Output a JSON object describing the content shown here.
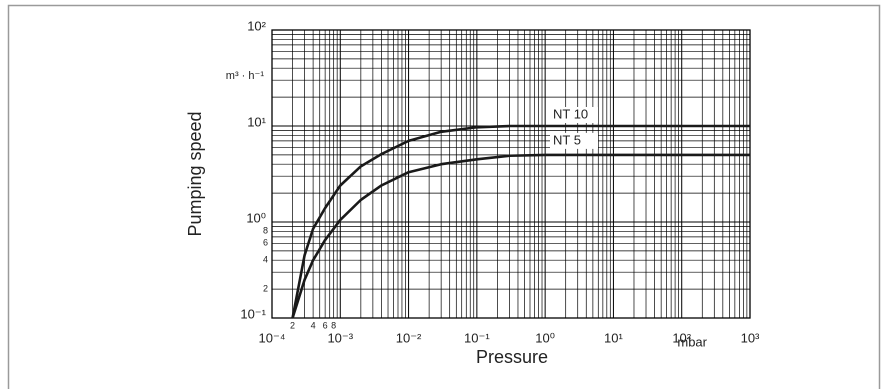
{
  "chart_data": {
    "type": "line",
    "x_label": "Pressure",
    "y_label": "Pumping speed",
    "x_unit": "mbar",
    "y_unit": "m³ · h⁻¹",
    "xscale": "log",
    "yscale": "log",
    "grid": true,
    "xlim": [
      0.0001,
      1000
    ],
    "ylim": [
      0.1,
      100
    ],
    "xticks": [
      {
        "value": 0.0001,
        "label": "10⁻⁴"
      },
      {
        "value": 0.001,
        "label": "10⁻³"
      },
      {
        "value": 0.01,
        "label": "10⁻²"
      },
      {
        "value": 0.1,
        "label": "10⁻¹"
      },
      {
        "value": 1,
        "label": "10⁰"
      },
      {
        "value": 10,
        "label": "10¹"
      },
      {
        "value": 100,
        "label": "10²"
      },
      {
        "value": 1000,
        "label": "10³"
      }
    ],
    "yticks": [
      {
        "value": 0.1,
        "label": "10⁻¹"
      },
      {
        "value": 1,
        "label": "10⁰"
      },
      {
        "value": 10,
        "label": "10¹"
      },
      {
        "value": 100,
        "label": "10²"
      }
    ],
    "x_minor_ticks": [
      {
        "value": 0.0002,
        "label": "2"
      },
      {
        "value": 0.0004,
        "label": "4"
      },
      {
        "value": 0.0006,
        "label": "6"
      },
      {
        "value": 0.0008,
        "label": "8"
      }
    ],
    "y_minor_ticks": [
      {
        "value": 0.2,
        "label": "2"
      },
      {
        "value": 0.4,
        "label": "4"
      },
      {
        "value": 0.6,
        "label": "6"
      },
      {
        "value": 0.8,
        "label": "8"
      }
    ],
    "x": [
      0.0002,
      0.0003,
      0.0004,
      0.0006,
      0.001,
      0.002,
      0.004,
      0.01,
      0.03,
      0.1,
      0.3,
      1,
      1000
    ],
    "series": [
      {
        "name": "NT 10",
        "color": "#1a1a1a",
        "values": [
          0.1,
          0.45,
          0.85,
          1.4,
          2.4,
          3.8,
          5.1,
          7,
          8.7,
          9.7,
          10,
          10,
          10
        ]
      },
      {
        "name": "NT 5",
        "color": "#1a1a1a",
        "values": [
          0.1,
          0.25,
          0.4,
          0.65,
          1.05,
          1.7,
          2.4,
          3.3,
          4.0,
          4.5,
          4.9,
          5,
          5
        ]
      }
    ]
  }
}
